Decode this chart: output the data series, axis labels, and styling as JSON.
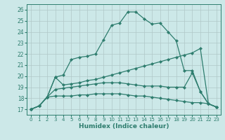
{
  "xlabel": "Humidex (Indice chaleur)",
  "background_color": "#cce8e8",
  "grid_color": "#b0c8c8",
  "line_color": "#2e7d6e",
  "xlim": [
    -0.5,
    23.5
  ],
  "ylim": [
    16.5,
    26.5
  ],
  "xticks": [
    0,
    1,
    2,
    3,
    4,
    5,
    6,
    7,
    8,
    9,
    10,
    11,
    12,
    13,
    14,
    15,
    16,
    17,
    18,
    19,
    20,
    21,
    22,
    23
  ],
  "yticks": [
    17,
    18,
    19,
    20,
    21,
    22,
    23,
    24,
    25,
    26
  ],
  "series": [
    [
      17.0,
      17.3,
      18.1,
      19.9,
      20.1,
      21.5,
      21.7,
      21.8,
      22.0,
      23.3,
      24.6,
      24.8,
      25.8,
      25.8,
      25.2,
      24.7,
      24.8,
      24.0,
      23.2,
      20.5,
      20.5,
      18.6,
      17.5,
      17.2
    ],
    [
      17.0,
      17.3,
      18.1,
      19.9,
      19.2,
      19.3,
      19.4,
      19.6,
      19.7,
      19.9,
      20.1,
      20.3,
      20.5,
      20.7,
      20.9,
      21.1,
      21.3,
      21.5,
      21.7,
      21.9,
      22.1,
      22.5,
      17.5,
      17.2
    ],
    [
      17.0,
      17.3,
      18.1,
      18.8,
      18.9,
      19.0,
      19.1,
      19.2,
      19.3,
      19.4,
      19.4,
      19.4,
      19.3,
      19.2,
      19.1,
      19.1,
      19.1,
      19.0,
      19.0,
      19.0,
      20.3,
      18.6,
      17.5,
      17.2
    ],
    [
      17.0,
      17.3,
      18.1,
      18.2,
      18.2,
      18.2,
      18.3,
      18.3,
      18.4,
      18.4,
      18.4,
      18.4,
      18.3,
      18.2,
      18.2,
      18.1,
      18.0,
      17.9,
      17.8,
      17.7,
      17.6,
      17.6,
      17.5,
      17.2
    ]
  ],
  "figsize": [
    3.2,
    2.0
  ],
  "dpi": 100
}
